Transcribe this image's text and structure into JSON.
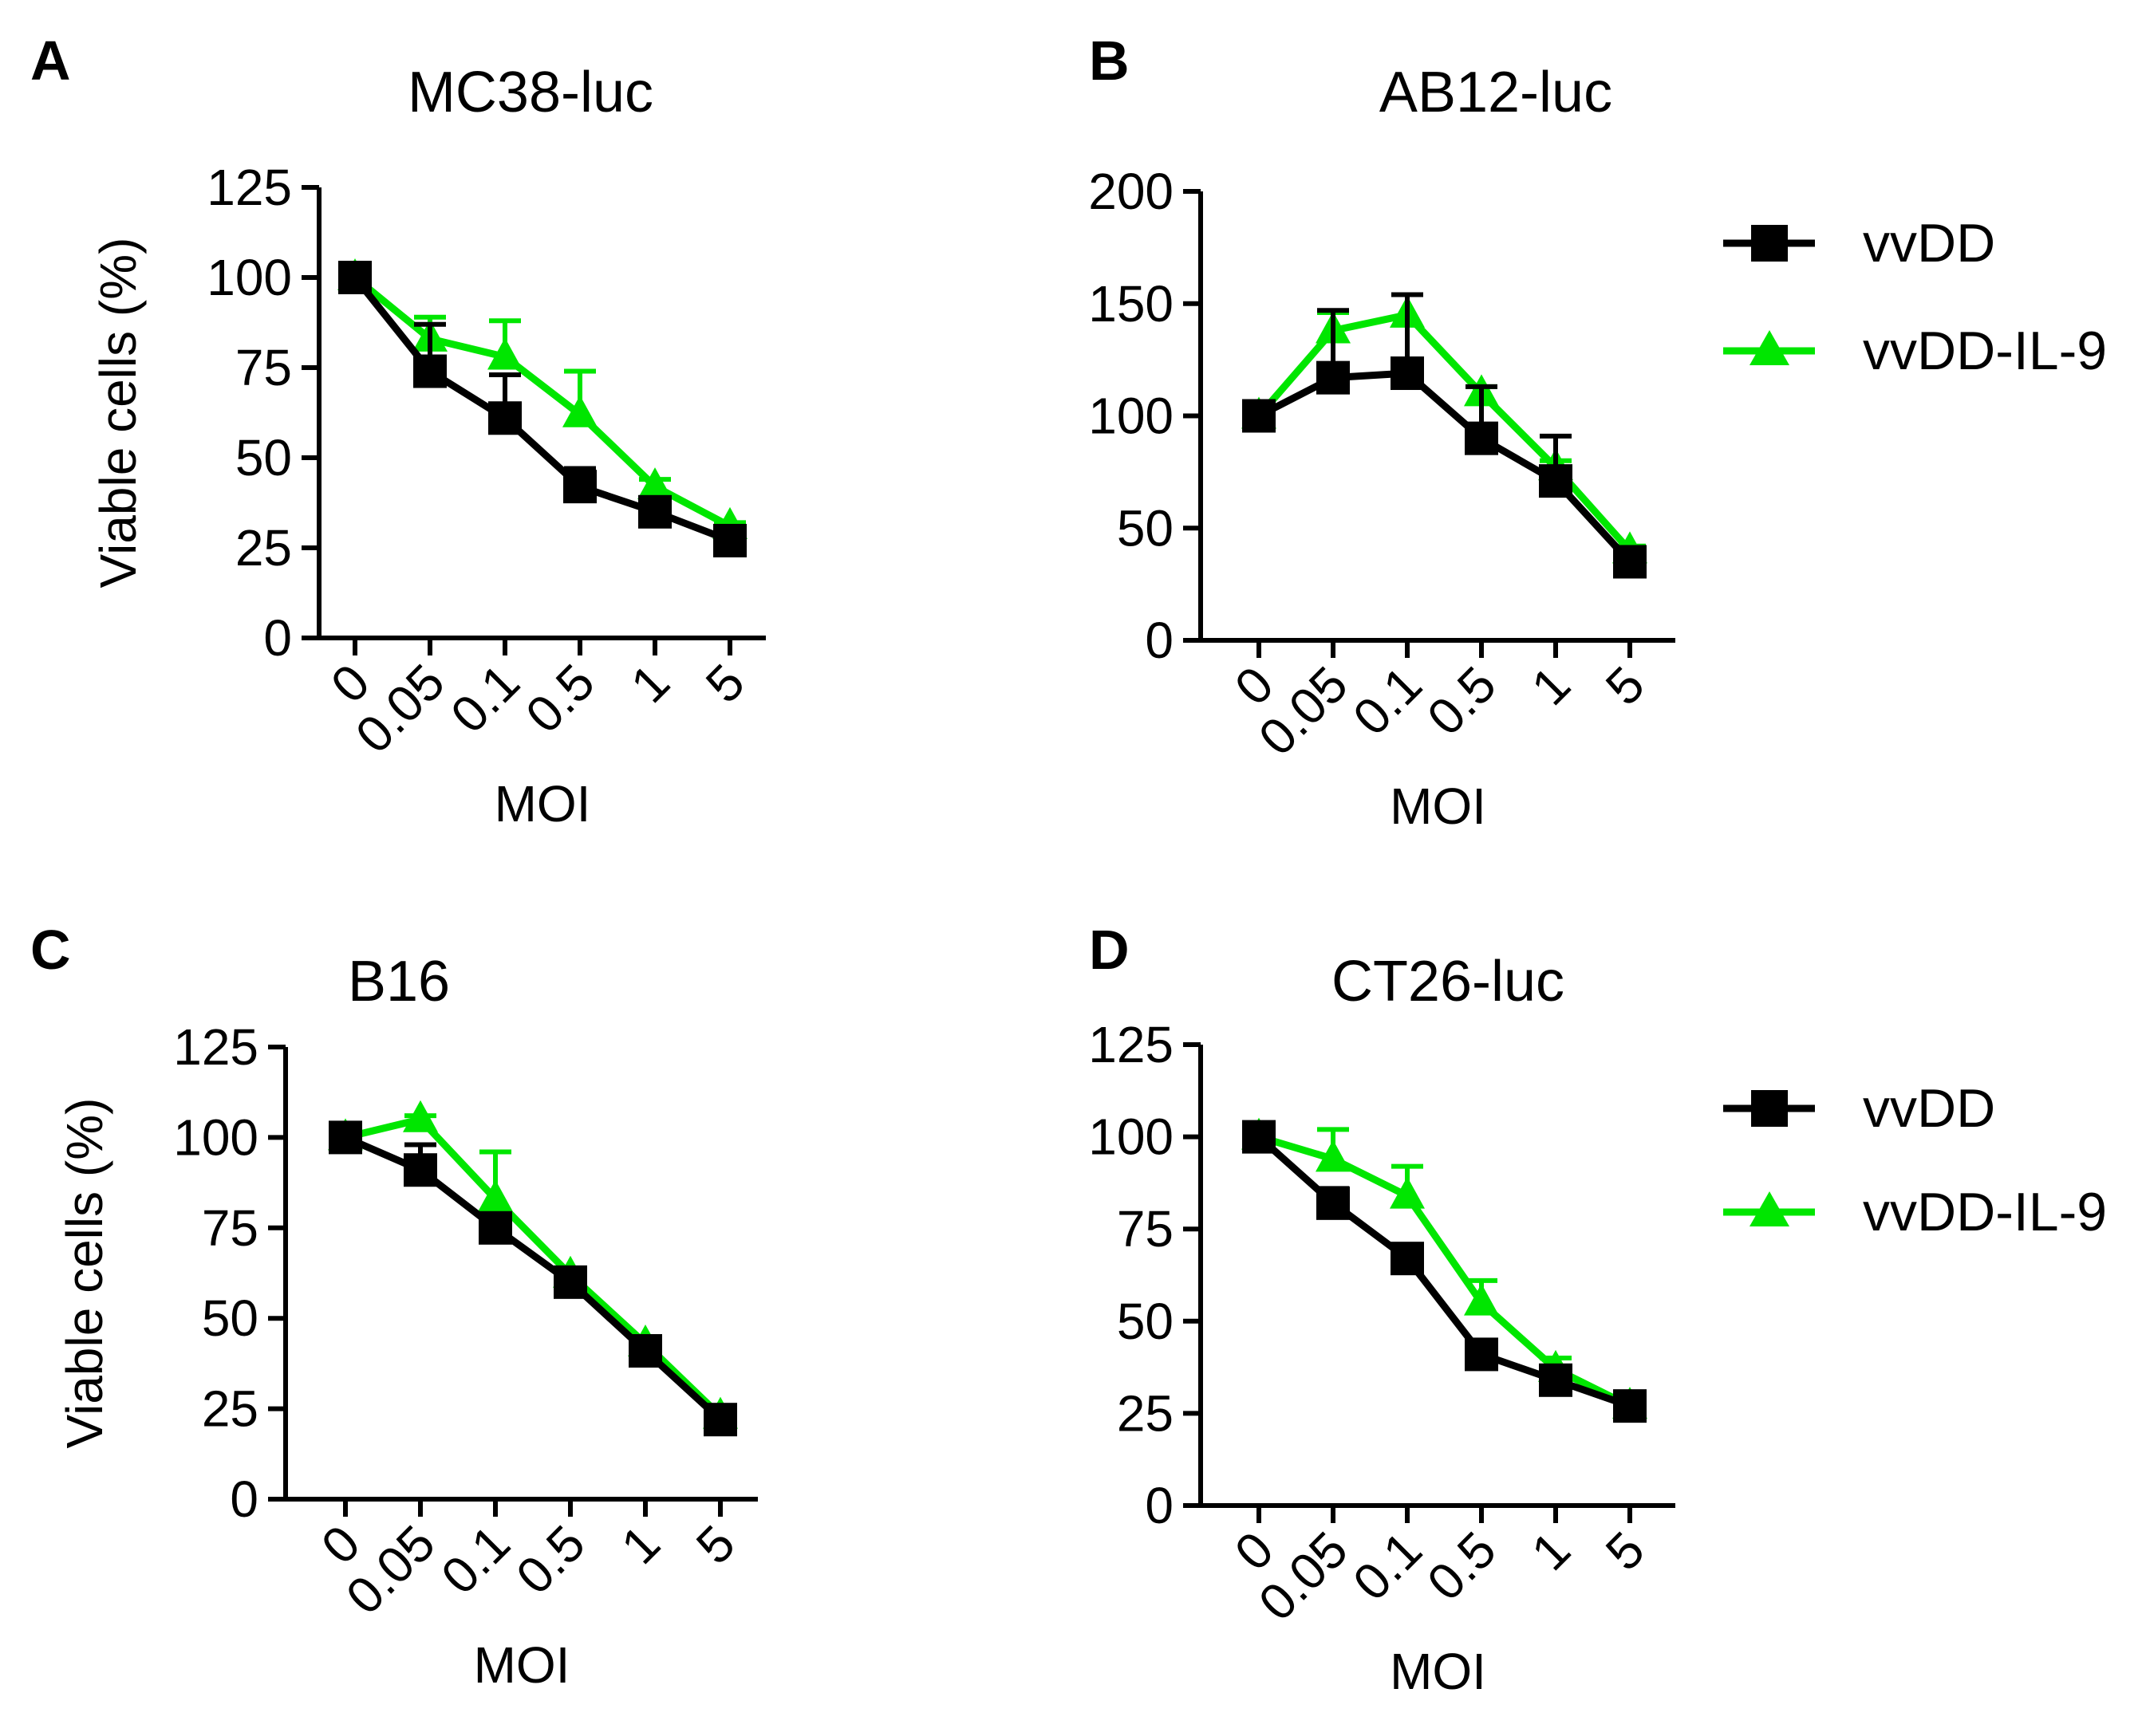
{
  "chart_data": [
    {
      "panel": "A",
      "type": "line",
      "title": "MC38-luc",
      "xlabel": "MOI",
      "ylabel": "Viable cells (%)",
      "categories": [
        "0",
        "0.05",
        "0.1",
        "0.5",
        "1",
        "5"
      ],
      "ylim": [
        0,
        125
      ],
      "yticks": [
        "0",
        "25",
        "50",
        "75",
        "100",
        "125"
      ],
      "series": [
        {
          "name": "vvDD",
          "color": "#000000",
          "marker": "square",
          "values": [
            100,
            74,
            61,
            42,
            35,
            27
          ],
          "err": [
            0,
            13,
            12,
            5,
            2,
            2
          ]
        },
        {
          "name": "vvDD-IL-9",
          "color": "#00e600",
          "marker": "triangle",
          "values": [
            100,
            83,
            78,
            62,
            42,
            31
          ],
          "err": [
            0,
            6,
            10,
            12,
            2,
            1
          ]
        }
      ]
    },
    {
      "panel": "B",
      "type": "line",
      "title": "AB12-luc",
      "xlabel": "MOI",
      "ylabel": "",
      "categories": [
        "0",
        "0.05",
        "0.1",
        "0.5",
        "1",
        "5"
      ],
      "ylim": [
        0,
        200
      ],
      "yticks": [
        "0",
        "50",
        "100",
        "150",
        "200"
      ],
      "series": [
        {
          "name": "vvDD",
          "color": "#000000",
          "marker": "square",
          "values": [
            100,
            117,
            119,
            90,
            71,
            35
          ],
          "err": [
            0,
            30,
            35,
            23,
            20,
            3
          ]
        },
        {
          "name": "vvDD-IL-9",
          "color": "#00e600",
          "marker": "triangle",
          "values": [
            100,
            138,
            145,
            110,
            77,
            40
          ],
          "err": [
            0,
            8,
            9,
            3,
            3,
            2
          ]
        }
      ]
    },
    {
      "panel": "C",
      "type": "line",
      "title": "B16",
      "xlabel": "MOI",
      "ylabel": "Viable cells (%)",
      "categories": [
        "0",
        "0.05",
        "0.1",
        "0.5",
        "1",
        "5"
      ],
      "ylim": [
        0,
        125
      ],
      "yticks": [
        "0",
        "25",
        "50",
        "75",
        "100",
        "125"
      ],
      "series": [
        {
          "name": "vvDD",
          "color": "#000000",
          "marker": "square",
          "values": [
            100,
            91,
            75,
            60,
            41,
            22
          ],
          "err": [
            0,
            7,
            3,
            2,
            2,
            1
          ]
        },
        {
          "name": "vvDD-IL-9",
          "color": "#00e600",
          "marker": "triangle",
          "values": [
            100,
            105,
            83,
            62,
            43,
            23
          ],
          "err": [
            0,
            1,
            13,
            1,
            1,
            1
          ]
        }
      ]
    },
    {
      "panel": "D",
      "type": "line",
      "title": "CT26-luc",
      "xlabel": "MOI",
      "ylabel": "",
      "categories": [
        "0",
        "0.05",
        "0.1",
        "0.5",
        "1",
        "5"
      ],
      "ylim": [
        0,
        125
      ],
      "yticks": [
        "0",
        "25",
        "50",
        "75",
        "100",
        "125"
      ],
      "series": [
        {
          "name": "vvDD",
          "color": "#000000",
          "marker": "square",
          "values": [
            100,
            82,
            67,
            41,
            34,
            27
          ],
          "err": [
            0,
            4,
            2,
            2,
            2,
            1
          ]
        },
        {
          "name": "vvDD-IL-9",
          "color": "#00e600",
          "marker": "triangle",
          "values": [
            100,
            94,
            84,
            55,
            37,
            27
          ],
          "err": [
            0,
            8,
            8,
            6,
            3,
            1
          ]
        }
      ]
    }
  ],
  "legends": [
    {
      "items": [
        {
          "label": "vvDD",
          "color": "#000000",
          "marker": "square"
        },
        {
          "label": "vvDD-IL-9",
          "color": "#00e600",
          "marker": "triangle"
        }
      ]
    },
    {
      "items": [
        {
          "label": "vvDD",
          "color": "#000000",
          "marker": "square"
        },
        {
          "label": "vvDD-IL-9",
          "color": "#00e600",
          "marker": "triangle"
        }
      ]
    }
  ]
}
